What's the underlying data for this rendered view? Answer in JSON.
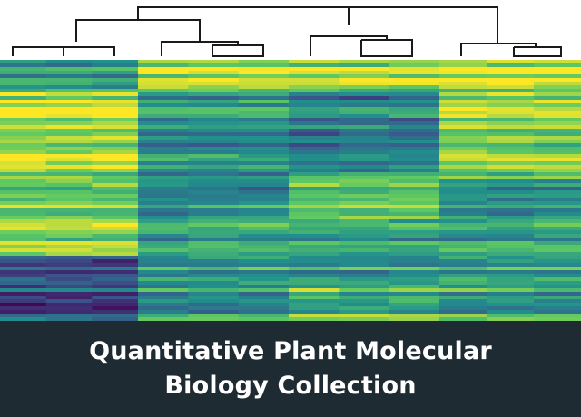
{
  "caption": {
    "line1": "Quantitative Plant Molecular",
    "line2": "Biology Collection"
  },
  "colors": {
    "viridis_low": "#440154",
    "viridis_mid": "#21918c",
    "viridis_high": "#fde725",
    "band_background": "#1e2b33",
    "caption_text": "#ffffff",
    "dendrogram_line": "#1a1a1a"
  },
  "heatmap": {
    "colormap": "viridis",
    "column_clusters": 4,
    "columns_per_cluster": 3
  }
}
